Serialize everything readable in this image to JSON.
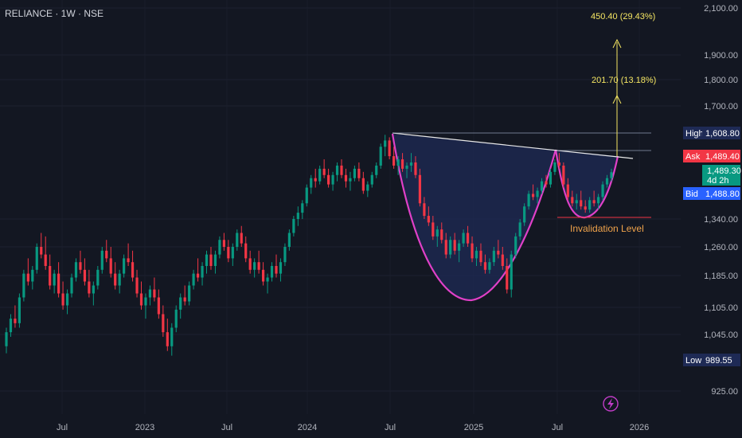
{
  "header": {
    "symbol_label": "RELIANCE · 1W · NSE"
  },
  "chart_data": {
    "type": "candlestick",
    "y_ticks": [
      "2,100.00",
      "1,900.00",
      "1,800.00",
      "1,700.00",
      "1,340.00",
      "1,260.00",
      "1,185.00",
      "1,105.00",
      "1,045.00",
      "925.00"
    ],
    "x_ticks": [
      "Jul",
      "2023",
      "Jul",
      "2024",
      "Jul",
      "2025",
      "Jul",
      "2026"
    ],
    "price_tags": [
      {
        "name": "High",
        "value": "1,608.80",
        "label_color": "#1e2a55",
        "value_color": "#1e2a55"
      },
      {
        "name": "Ask",
        "value": "1,489.40",
        "label_color": "#f23645",
        "value_color": "#f23645"
      },
      {
        "name": "",
        "value": "1,489.30",
        "sub": "4d 2h",
        "label_color": "#089981",
        "value_color": "#089981"
      },
      {
        "name": "Bid",
        "value": "1,488.80",
        "label_color": "#2962ff",
        "value_color": "#2962ff"
      },
      {
        "name": "Low",
        "value": "989.55",
        "label_color": "#1e2a55",
        "value_color": "#1e2a55"
      }
    ],
    "annotations": {
      "target_far": "450.40 (29.43%)",
      "target_near": "201.70 (13.18%)",
      "invalidation": "Invalidation Level"
    },
    "candles": [
      [
        1020,
        1060,
        1005,
        1050
      ],
      [
        1050,
        1090,
        1040,
        1080
      ],
      [
        1080,
        1110,
        1060,
        1070
      ],
      [
        1070,
        1140,
        1060,
        1130
      ],
      [
        1130,
        1200,
        1120,
        1190
      ],
      [
        1190,
        1230,
        1160,
        1170
      ],
      [
        1170,
        1210,
        1150,
        1200
      ],
      [
        1200,
        1270,
        1190,
        1260
      ],
      [
        1260,
        1300,
        1230,
        1240
      ],
      [
        1240,
        1290,
        1200,
        1210
      ],
      [
        1210,
        1240,
        1150,
        1160
      ],
      [
        1160,
        1200,
        1140,
        1190
      ],
      [
        1190,
        1220,
        1130,
        1140
      ],
      [
        1140,
        1170,
        1100,
        1110
      ],
      [
        1110,
        1150,
        1090,
        1140
      ],
      [
        1140,
        1190,
        1130,
        1180
      ],
      [
        1180,
        1230,
        1170,
        1220
      ],
      [
        1220,
        1250,
        1190,
        1200
      ],
      [
        1200,
        1230,
        1160,
        1170
      ],
      [
        1170,
        1200,
        1130,
        1140
      ],
      [
        1140,
        1170,
        1110,
        1160
      ],
      [
        1160,
        1210,
        1150,
        1200
      ],
      [
        1200,
        1260,
        1190,
        1250
      ],
      [
        1250,
        1280,
        1220,
        1230
      ],
      [
        1230,
        1260,
        1180,
        1190
      ],
      [
        1190,
        1220,
        1150,
        1160
      ],
      [
        1160,
        1200,
        1140,
        1190
      ],
      [
        1190,
        1240,
        1180,
        1230
      ],
      [
        1230,
        1270,
        1210,
        1220
      ],
      [
        1220,
        1250,
        1170,
        1180
      ],
      [
        1180,
        1200,
        1130,
        1140
      ],
      [
        1140,
        1170,
        1100,
        1110
      ],
      [
        1110,
        1140,
        1080,
        1130
      ],
      [
        1130,
        1160,
        1110,
        1150
      ],
      [
        1150,
        1180,
        1120,
        1130
      ],
      [
        1130,
        1150,
        1080,
        1090
      ],
      [
        1090,
        1110,
        1040,
        1050
      ],
      [
        1050,
        1080,
        1010,
        1020
      ],
      [
        1020,
        1070,
        1000,
        1060
      ],
      [
        1060,
        1110,
        1050,
        1100
      ],
      [
        1100,
        1140,
        1080,
        1130
      ],
      [
        1130,
        1160,
        1110,
        1120
      ],
      [
        1120,
        1170,
        1110,
        1160
      ],
      [
        1160,
        1200,
        1150,
        1190
      ],
      [
        1190,
        1230,
        1170,
        1180
      ],
      [
        1180,
        1220,
        1160,
        1210
      ],
      [
        1210,
        1250,
        1190,
        1240
      ],
      [
        1240,
        1260,
        1200,
        1210
      ],
      [
        1210,
        1250,
        1190,
        1240
      ],
      [
        1240,
        1290,
        1230,
        1280
      ],
      [
        1280,
        1300,
        1250,
        1260
      ],
      [
        1260,
        1280,
        1220,
        1230
      ],
      [
        1230,
        1270,
        1210,
        1260
      ],
      [
        1260,
        1310,
        1250,
        1300
      ],
      [
        1300,
        1320,
        1260,
        1270
      ],
      [
        1270,
        1290,
        1220,
        1230
      ],
      [
        1230,
        1250,
        1190,
        1200
      ],
      [
        1200,
        1230,
        1180,
        1220
      ],
      [
        1220,
        1250,
        1190,
        1200
      ],
      [
        1200,
        1220,
        1160,
        1170
      ],
      [
        1170,
        1190,
        1140,
        1180
      ],
      [
        1180,
        1220,
        1170,
        1210
      ],
      [
        1210,
        1240,
        1180,
        1190
      ],
      [
        1190,
        1230,
        1170,
        1220
      ],
      [
        1220,
        1270,
        1210,
        1260
      ],
      [
        1260,
        1310,
        1250,
        1300
      ],
      [
        1300,
        1350,
        1290,
        1340
      ],
      [
        1340,
        1380,
        1320,
        1360
      ],
      [
        1360,
        1400,
        1340,
        1390
      ],
      [
        1390,
        1450,
        1380,
        1440
      ],
      [
        1440,
        1480,
        1420,
        1470
      ],
      [
        1470,
        1500,
        1440,
        1460
      ],
      [
        1460,
        1510,
        1450,
        1500
      ],
      [
        1500,
        1530,
        1470,
        1480
      ],
      [
        1480,
        1500,
        1440,
        1450
      ],
      [
        1450,
        1490,
        1430,
        1480
      ],
      [
        1480,
        1520,
        1460,
        1510
      ],
      [
        1510,
        1530,
        1470,
        1480
      ],
      [
        1480,
        1500,
        1440,
        1460
      ],
      [
        1460,
        1490,
        1430,
        1470
      ],
      [
        1470,
        1510,
        1460,
        1500
      ],
      [
        1500,
        1520,
        1460,
        1470
      ],
      [
        1470,
        1490,
        1420,
        1430
      ],
      [
        1430,
        1460,
        1410,
        1450
      ],
      [
        1450,
        1490,
        1440,
        1480
      ],
      [
        1480,
        1520,
        1470,
        1510
      ],
      [
        1510,
        1580,
        1500,
        1570
      ],
      [
        1570,
        1608,
        1540,
        1590
      ],
      [
        1590,
        1600,
        1530,
        1540
      ],
      [
        1540,
        1570,
        1500,
        1510
      ],
      [
        1510,
        1540,
        1480,
        1530
      ],
      [
        1530,
        1550,
        1490,
        1500
      ],
      [
        1500,
        1520,
        1470,
        1510
      ],
      [
        1510,
        1550,
        1490,
        1520
      ],
      [
        1520,
        1540,
        1470,
        1480
      ],
      [
        1480,
        1500,
        1380,
        1390
      ],
      [
        1390,
        1410,
        1340,
        1350
      ],
      [
        1350,
        1380,
        1320,
        1330
      ],
      [
        1330,
        1350,
        1280,
        1290
      ],
      [
        1290,
        1320,
        1260,
        1310
      ],
      [
        1310,
        1330,
        1270,
        1280
      ],
      [
        1280,
        1300,
        1230,
        1240
      ],
      [
        1240,
        1290,
        1230,
        1280
      ],
      [
        1280,
        1300,
        1240,
        1250
      ],
      [
        1250,
        1280,
        1220,
        1270
      ],
      [
        1270,
        1310,
        1260,
        1300
      ],
      [
        1300,
        1320,
        1260,
        1270
      ],
      [
        1270,
        1290,
        1220,
        1230
      ],
      [
        1230,
        1260,
        1210,
        1250
      ],
      [
        1250,
        1270,
        1210,
        1220
      ],
      [
        1220,
        1240,
        1190,
        1200
      ],
      [
        1200,
        1230,
        1190,
        1220
      ],
      [
        1220,
        1260,
        1210,
        1250
      ],
      [
        1250,
        1280,
        1230,
        1240
      ],
      [
        1240,
        1260,
        1200,
        1210
      ],
      [
        1210,
        1230,
        1140,
        1150
      ],
      [
        1150,
        1250,
        1130,
        1240
      ],
      [
        1240,
        1300,
        1230,
        1290
      ],
      [
        1290,
        1340,
        1280,
        1330
      ],
      [
        1330,
        1390,
        1320,
        1380
      ],
      [
        1380,
        1430,
        1370,
        1420
      ],
      [
        1420,
        1450,
        1400,
        1410
      ],
      [
        1410,
        1440,
        1390,
        1430
      ],
      [
        1430,
        1470,
        1420,
        1460
      ],
      [
        1460,
        1480,
        1440,
        1450
      ],
      [
        1450,
        1500,
        1440,
        1490
      ],
      [
        1490,
        1530,
        1480,
        1520
      ],
      [
        1520,
        1550,
        1500,
        1510
      ],
      [
        1510,
        1520,
        1440,
        1450
      ],
      [
        1450,
        1470,
        1400,
        1410
      ],
      [
        1410,
        1430,
        1380,
        1390
      ],
      [
        1390,
        1420,
        1370,
        1400
      ],
      [
        1400,
        1430,
        1370,
        1380
      ],
      [
        1380,
        1400,
        1360,
        1370
      ],
      [
        1370,
        1410,
        1360,
        1400
      ],
      [
        1400,
        1430,
        1380,
        1390
      ],
      [
        1390,
        1420,
        1370,
        1410
      ],
      [
        1410,
        1460,
        1400,
        1450
      ],
      [
        1450,
        1480,
        1440,
        1470
      ],
      [
        1470,
        1500,
        1460,
        1489
      ]
    ]
  }
}
